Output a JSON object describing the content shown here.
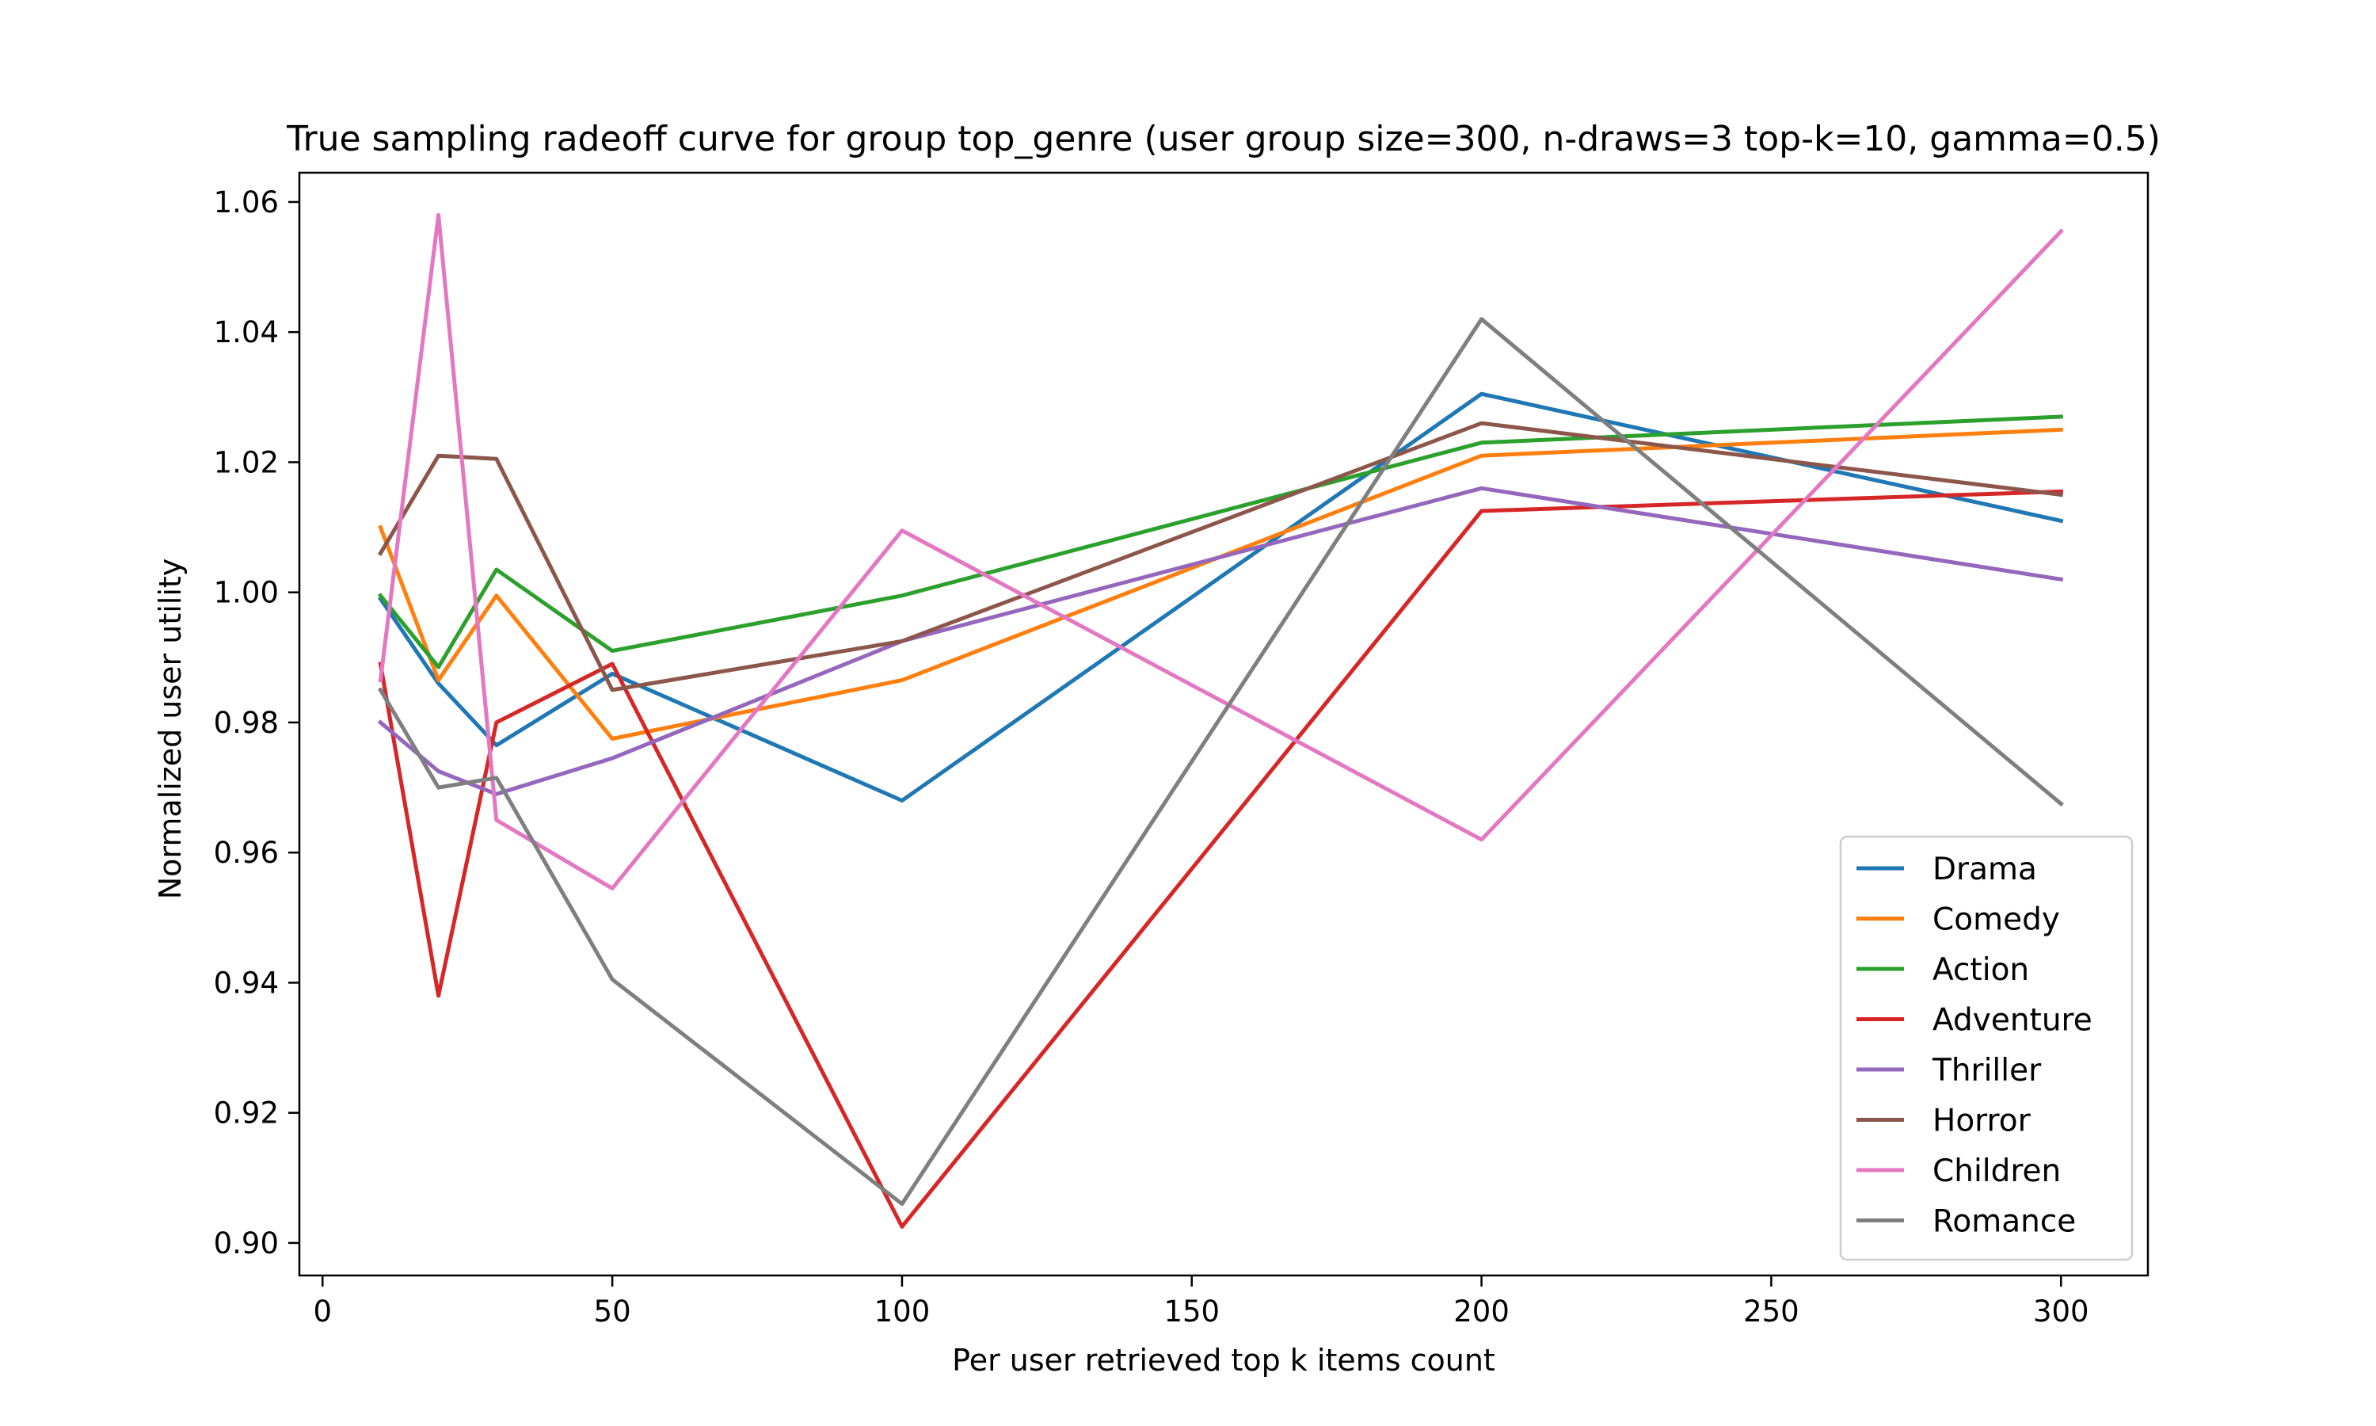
{
  "chart_data": {
    "type": "line",
    "title": "True sampling radeoff curve for group top_genre (user group size=300, n-draws=3 top-k=10, gamma=0.5)",
    "xlabel": "Per user retrieved top k items count",
    "ylabel": "Normalized user utility",
    "xlim": [
      -4,
      315
    ],
    "ylim": [
      0.895,
      1.0645
    ],
    "x_ticks": [
      0,
      50,
      100,
      150,
      200,
      250,
      300
    ],
    "y_ticks": [
      0.9,
      0.92,
      0.94,
      0.96,
      0.98,
      1.0,
      1.02,
      1.04,
      1.06
    ],
    "x_tick_labels": [
      "0",
      "50",
      "100",
      "150",
      "200",
      "250",
      "300"
    ],
    "y_tick_labels": [
      "0.90",
      "0.92",
      "0.94",
      "0.96",
      "0.98",
      "1.00",
      "1.02",
      "1.04",
      "1.06"
    ],
    "grid": false,
    "legend_position": "lower-right",
    "x": [
      10,
      20,
      30,
      50,
      100,
      200,
      300
    ],
    "series": [
      {
        "name": "Drama",
        "color": "#1f77b4",
        "values": [
          0.999,
          0.986,
          0.9765,
          0.9875,
          0.968,
          1.0305,
          1.011
        ]
      },
      {
        "name": "Comedy",
        "color": "#ff7f0e",
        "values": [
          1.01,
          0.9865,
          0.9995,
          0.9775,
          0.9865,
          1.021,
          1.025
        ]
      },
      {
        "name": "Action",
        "color": "#2ca02c",
        "values": [
          0.9995,
          0.9885,
          1.0035,
          0.991,
          0.9995,
          1.023,
          1.027
        ]
      },
      {
        "name": "Adventure",
        "color": "#d62728",
        "values": [
          0.989,
          0.938,
          0.98,
          0.989,
          0.9025,
          1.0125,
          1.0155
        ]
      },
      {
        "name": "Thriller",
        "color": "#9467bd",
        "values": [
          0.98,
          0.9725,
          0.969,
          0.9745,
          0.9925,
          1.016,
          1.002
        ]
      },
      {
        "name": "Horror",
        "color": "#8c564b",
        "values": [
          1.006,
          1.021,
          1.0205,
          0.985,
          0.9925,
          1.026,
          1.015
        ]
      },
      {
        "name": "Children",
        "color": "#e377c2",
        "values": [
          0.9865,
          1.058,
          0.965,
          0.9545,
          1.0095,
          0.962,
          1.0555
        ]
      },
      {
        "name": "Romance",
        "color": "#7f7f7f",
        "values": [
          0.985,
          0.97,
          0.9715,
          0.9405,
          0.906,
          1.042,
          0.9675
        ]
      }
    ]
  }
}
